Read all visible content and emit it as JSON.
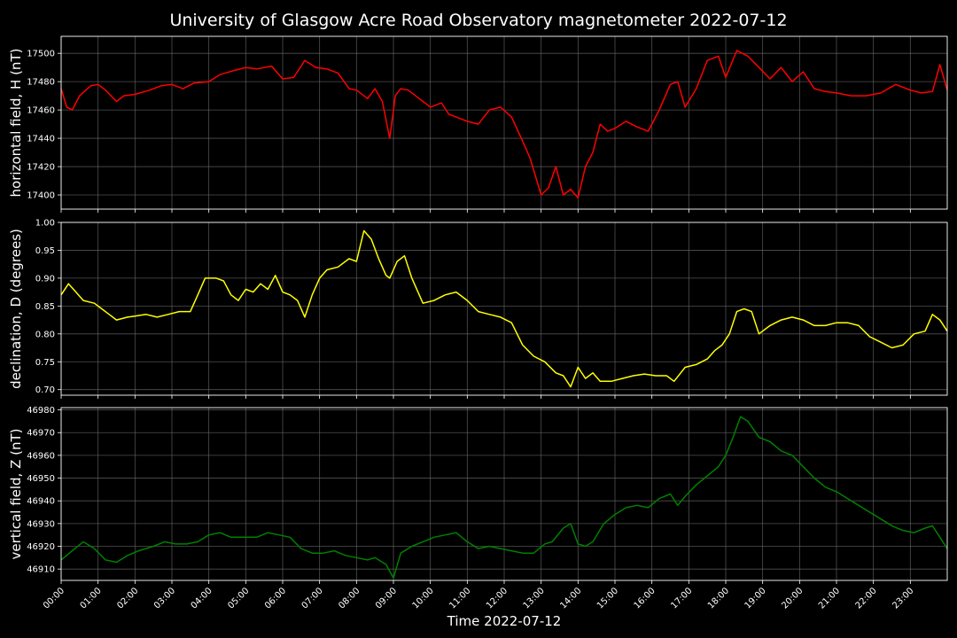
{
  "chart_data": {
    "type": "line",
    "title": "University of Glasgow Acre Road Observatory magnetometer 2022-07-12",
    "xlabel": "Time 2022-07-12",
    "x_ticks": [
      "00:00",
      "01:00",
      "02:00",
      "03:00",
      "04:00",
      "05:00",
      "06:00",
      "07:00",
      "08:00",
      "09:00",
      "10:00",
      "11:00",
      "12:00",
      "13:00",
      "14:00",
      "15:00",
      "16:00",
      "17:00",
      "18:00",
      "19:00",
      "20:00",
      "21:00",
      "22:00",
      "23:00"
    ],
    "xlim_hours": [
      0,
      24
    ],
    "grid": true,
    "panels": [
      {
        "id": "H",
        "ylabel": "horizontal field, H (nT)",
        "color": "#ff0000",
        "ylim": [
          17390,
          17512
        ],
        "y_ticks": [
          "17400",
          "17420",
          "17440",
          "17460",
          "17480",
          "17500"
        ],
        "tick_values": [
          17400,
          17420,
          17440,
          17460,
          17480,
          17500
        ],
        "x_hours": [
          0,
          0.15,
          0.3,
          0.5,
          0.8,
          1.0,
          1.2,
          1.5,
          1.7,
          2.0,
          2.4,
          2.7,
          3.0,
          3.3,
          3.6,
          4.0,
          4.3,
          4.7,
          5.0,
          5.3,
          5.7,
          6.0,
          6.3,
          6.6,
          6.9,
          7.2,
          7.5,
          7.8,
          8.0,
          8.3,
          8.5,
          8.7,
          8.9,
          9.05,
          9.2,
          9.4,
          9.7,
          10.0,
          10.3,
          10.5,
          10.7,
          11.0,
          11.3,
          11.6,
          11.9,
          12.2,
          12.5,
          12.7,
          13.0,
          13.2,
          13.4,
          13.6,
          13.8,
          14.0,
          14.2,
          14.4,
          14.6,
          14.8,
          15.0,
          15.3,
          15.6,
          15.9,
          16.2,
          16.5,
          16.7,
          16.9,
          17.2,
          17.5,
          17.8,
          18.0,
          18.3,
          18.6,
          18.9,
          19.2,
          19.5,
          19.8,
          20.1,
          20.4,
          20.7,
          21.0,
          21.4,
          21.8,
          22.2,
          22.6,
          23.0,
          23.3,
          23.6,
          23.8,
          24.0
        ],
        "values": [
          17475,
          17462,
          17460,
          17470,
          17477,
          17478,
          17474,
          17466,
          17470,
          17471,
          17474,
          17477,
          17478,
          17475,
          17479,
          17480,
          17485,
          17488,
          17490,
          17489,
          17491,
          17482,
          17483,
          17495,
          17490,
          17489,
          17486,
          17475,
          17474,
          17468,
          17475,
          17466,
          17440,
          17470,
          17475,
          17474,
          17468,
          17462,
          17465,
          17457,
          17455,
          17452,
          17450,
          17460,
          17462,
          17455,
          17438,
          17426,
          17400,
          17405,
          17420,
          17400,
          17404,
          17398,
          17420,
          17430,
          17450,
          17445,
          17447,
          17452,
          17448,
          17445,
          17460,
          17478,
          17480,
          17462,
          17475,
          17495,
          17498,
          17483,
          17502,
          17498,
          17490,
          17482,
          17490,
          17480,
          17487,
          17475,
          17473,
          17472,
          17470,
          17470,
          17472,
          17478,
          17474,
          17472,
          17473,
          17492,
          17474
        ],
        "plot_box_y": [
          41,
          236
        ]
      },
      {
        "id": "D",
        "ylabel": "declination, D (degrees)",
        "color": "#ffff00",
        "ylim": [
          0.69,
          1.0
        ],
        "y_ticks": [
          "0.70",
          "0.75",
          "0.80",
          "0.85",
          "0.90",
          "0.95",
          "1.00"
        ],
        "tick_values": [
          0.7,
          0.75,
          0.8,
          0.85,
          0.9,
          0.95,
          1.0
        ],
        "x_hours": [
          0,
          0.2,
          0.4,
          0.6,
          0.9,
          1.1,
          1.3,
          1.5,
          1.8,
          2.0,
          2.3,
          2.6,
          2.9,
          3.2,
          3.5,
          3.7,
          3.9,
          4.2,
          4.4,
          4.6,
          4.8,
          5.0,
          5.2,
          5.4,
          5.6,
          5.8,
          6.0,
          6.2,
          6.4,
          6.6,
          6.8,
          7.0,
          7.2,
          7.5,
          7.8,
          8.0,
          8.2,
          8.4,
          8.6,
          8.8,
          8.9,
          9.1,
          9.3,
          9.5,
          9.8,
          10.1,
          10.4,
          10.7,
          11.0,
          11.3,
          11.6,
          11.9,
          12.2,
          12.5,
          12.8,
          13.1,
          13.4,
          13.6,
          13.8,
          14.0,
          14.2,
          14.4,
          14.6,
          14.9,
          15.2,
          15.5,
          15.8,
          16.1,
          16.4,
          16.6,
          16.9,
          17.2,
          17.5,
          17.7,
          17.9,
          18.1,
          18.3,
          18.5,
          18.7,
          18.9,
          19.2,
          19.5,
          19.8,
          20.1,
          20.4,
          20.7,
          21.0,
          21.3,
          21.6,
          21.9,
          22.2,
          22.5,
          22.8,
          23.1,
          23.4,
          23.6,
          23.8,
          24.0
        ],
        "values": [
          0.87,
          0.89,
          0.875,
          0.86,
          0.855,
          0.845,
          0.835,
          0.825,
          0.83,
          0.832,
          0.835,
          0.83,
          0.835,
          0.84,
          0.84,
          0.87,
          0.9,
          0.9,
          0.895,
          0.87,
          0.86,
          0.88,
          0.875,
          0.89,
          0.88,
          0.905,
          0.875,
          0.87,
          0.86,
          0.83,
          0.87,
          0.9,
          0.915,
          0.92,
          0.935,
          0.93,
          0.985,
          0.97,
          0.935,
          0.905,
          0.9,
          0.93,
          0.94,
          0.9,
          0.855,
          0.86,
          0.87,
          0.875,
          0.86,
          0.84,
          0.835,
          0.83,
          0.82,
          0.78,
          0.76,
          0.75,
          0.73,
          0.725,
          0.705,
          0.74,
          0.72,
          0.73,
          0.715,
          0.715,
          0.72,
          0.725,
          0.728,
          0.725,
          0.725,
          0.715,
          0.74,
          0.745,
          0.755,
          0.77,
          0.78,
          0.8,
          0.84,
          0.845,
          0.84,
          0.8,
          0.815,
          0.825,
          0.83,
          0.825,
          0.815,
          0.815,
          0.82,
          0.82,
          0.815,
          0.795,
          0.785,
          0.775,
          0.78,
          0.8,
          0.805,
          0.835,
          0.825,
          0.805
        ],
        "plot_box_y": [
          251,
          446
        ]
      },
      {
        "id": "Z",
        "ylabel": "vertical field, Z (nT)",
        "color": "#008000",
        "ylim": [
          46905,
          46981
        ],
        "y_ticks": [
          "46910",
          "46920",
          "46930",
          "46940",
          "46950",
          "46960",
          "46970",
          "46980"
        ],
        "tick_values": [
          46910,
          46920,
          46930,
          46940,
          46950,
          46960,
          46970,
          46980
        ],
        "x_hours": [
          0,
          0.3,
          0.6,
          0.9,
          1.2,
          1.5,
          1.8,
          2.1,
          2.5,
          2.8,
          3.1,
          3.4,
          3.7,
          4.0,
          4.3,
          4.6,
          5.0,
          5.3,
          5.6,
          5.9,
          6.2,
          6.5,
          6.8,
          7.1,
          7.4,
          7.7,
          8.0,
          8.3,
          8.5,
          8.7,
          8.8,
          9.0,
          9.2,
          9.5,
          9.8,
          10.1,
          10.4,
          10.7,
          11.0,
          11.3,
          11.6,
          11.9,
          12.2,
          12.5,
          12.8,
          13.1,
          13.3,
          13.6,
          13.8,
          14.0,
          14.2,
          14.4,
          14.7,
          15.0,
          15.3,
          15.6,
          15.9,
          16.2,
          16.5,
          16.7,
          16.9,
          17.2,
          17.5,
          17.8,
          18.0,
          18.2,
          18.4,
          18.6,
          18.9,
          19.2,
          19.5,
          19.8,
          20.1,
          20.4,
          20.7,
          21.0,
          21.3,
          21.6,
          21.9,
          22.2,
          22.5,
          22.8,
          23.1,
          23.4,
          23.6,
          23.8,
          24.0
        ],
        "values": [
          46914,
          46918,
          46922,
          46919,
          46914,
          46913,
          46916,
          46918,
          46920,
          46922,
          46921,
          46921,
          46922,
          46925,
          46926,
          46924,
          46924,
          46924,
          46926,
          46925,
          46924,
          46919,
          46917,
          46917,
          46918,
          46916,
          46915,
          46914,
          46915,
          46913,
          46912,
          46906,
          46917,
          46920,
          46922,
          46924,
          46925,
          46926,
          46922,
          46919,
          46920,
          46919,
          46918,
          46917,
          46917,
          46921,
          46922,
          46928,
          46930,
          46921,
          46920,
          46922,
          46930,
          46934,
          46937,
          46938,
          46937,
          46941,
          46943,
          46938,
          46942,
          46947,
          46951,
          46955,
          46960,
          46968,
          46977,
          46975,
          46968,
          46966,
          46962,
          46960,
          46955,
          46950,
          46946,
          46944,
          46941,
          46938,
          46935,
          46932,
          46929,
          46927,
          46926,
          46928,
          46929,
          46924,
          46919
        ],
        "plot_box_y": [
          460,
          655
        ]
      }
    ]
  },
  "layout": {
    "plot_left": 69,
    "plot_right": 1069
  }
}
